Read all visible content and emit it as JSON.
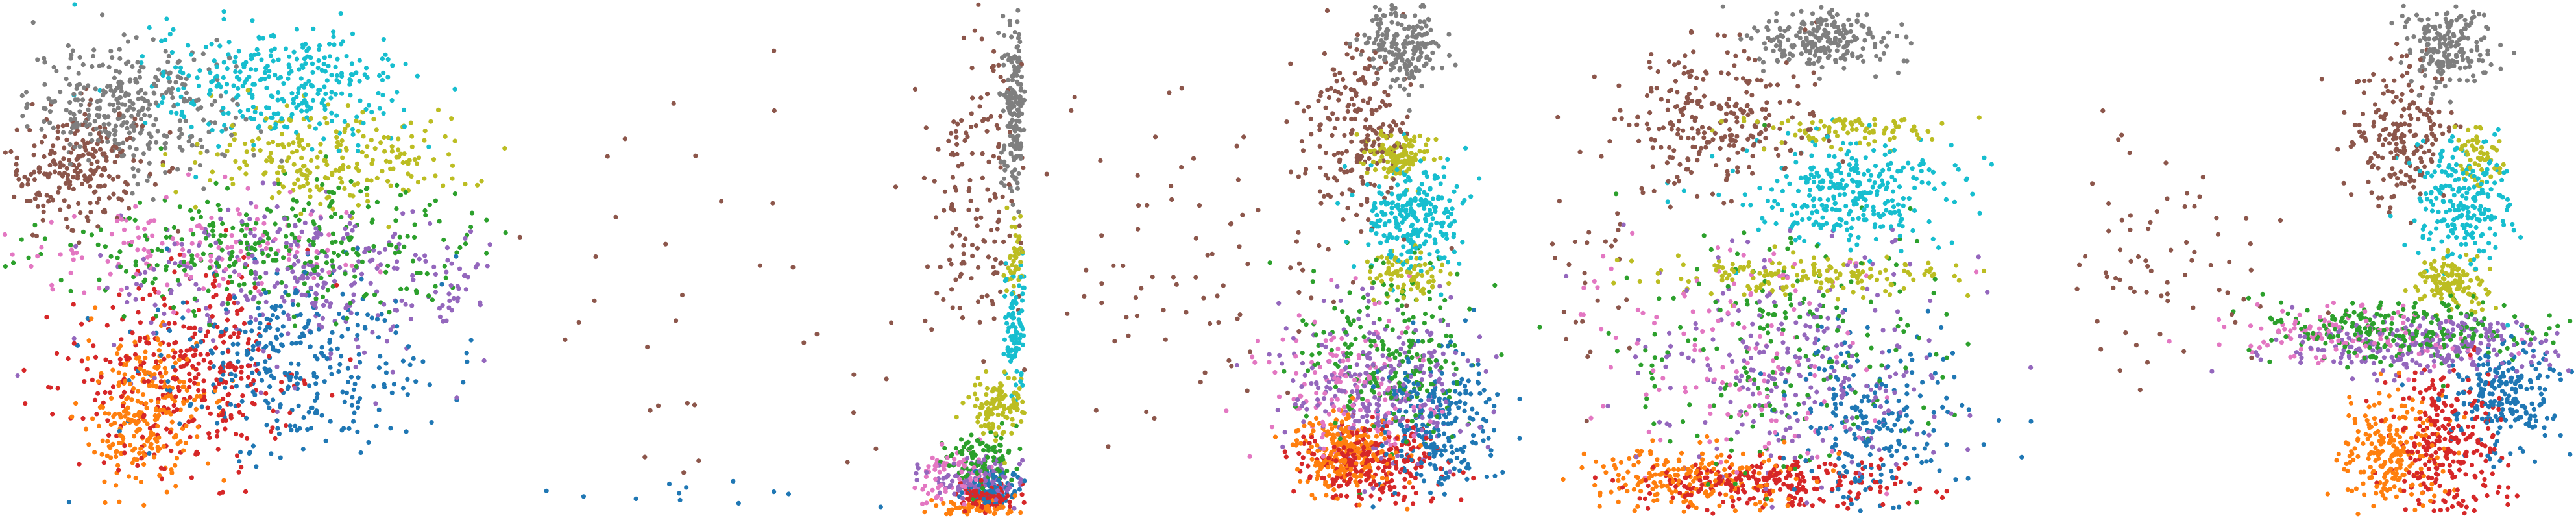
{
  "figure": {
    "title": "",
    "palette": {
      "blue": "#1f77b4",
      "orange": "#ff7f0e",
      "green": "#2ca02c",
      "red": "#d62728",
      "purple": "#9467bd",
      "brown": "#8c564b",
      "pink": "#e377c2",
      "gray": "#7f7f7f",
      "olive": "#bcbd22",
      "cyan": "#17becf"
    }
  },
  "chart_data": [
    {
      "type": "scatter",
      "title": "",
      "xlabel": "",
      "ylabel": "",
      "axes_visible": false,
      "grid": false,
      "legend": "none",
      "xlim": [
        0,
        100
      ],
      "ylim": [
        0,
        100
      ],
      "series": [
        {
          "color": "#7f7f7f",
          "clusters": [
            {
              "cx": 25,
              "cy": 80,
              "sx": 10,
              "sy": 6,
              "n": 340
            }
          ]
        },
        {
          "color": "#8c564b",
          "clusters": [
            {
              "cx": 14,
              "cy": 68,
              "sx": 7,
              "sy": 6,
              "n": 230
            }
          ]
        },
        {
          "color": "#17becf",
          "clusters": [
            {
              "cx": 55,
              "cy": 84,
              "sx": 13,
              "sy": 6,
              "n": 330
            }
          ]
        },
        {
          "color": "#bcbd22",
          "clusters": [
            {
              "cx": 65,
              "cy": 70,
              "sx": 14,
              "sy": 5,
              "n": 230
            }
          ]
        },
        {
          "color": "#2ca02c",
          "clusters": [
            {
              "cx": 55,
              "cy": 52,
              "sx": 22,
              "sy": 6,
              "n": 320
            }
          ]
        },
        {
          "color": "#9467bd",
          "clusters": [
            {
              "cx": 62,
              "cy": 46,
              "sx": 20,
              "sy": 8,
              "n": 320
            }
          ]
        },
        {
          "color": "#e377c2",
          "clusters": [
            {
              "cx": 38,
              "cy": 52,
              "sx": 18,
              "sy": 5,
              "n": 140
            }
          ]
        },
        {
          "color": "#1f77b4",
          "clusters": [
            {
              "cx": 57,
              "cy": 30,
              "sx": 14,
              "sy": 9,
              "n": 330
            }
          ]
        },
        {
          "color": "#d62728",
          "clusters": [
            {
              "cx": 36,
              "cy": 27,
              "sx": 12,
              "sy": 10,
              "n": 340
            }
          ]
        },
        {
          "color": "#ff7f0e",
          "clusters": [
            {
              "cx": 28,
              "cy": 20,
              "sx": 6,
              "sy": 7,
              "n": 270
            }
          ]
        }
      ]
    },
    {
      "type": "scatter",
      "title": "",
      "xlabel": "",
      "ylabel": "",
      "axes_visible": false,
      "grid": false,
      "legend": "none",
      "xlim": [
        0,
        100
      ],
      "ylim": [
        0,
        100
      ],
      "series": [
        {
          "color": "#7f7f7f",
          "clusters": [
            {
              "cx": 98,
              "cy": 80,
              "sx": 1.2,
              "sy": 8,
              "n": 180
            }
          ]
        },
        {
          "color": "#8c564b",
          "clusters": [
            {
              "cx": 90,
              "cy": 62,
              "sx": 5,
              "sy": 16,
              "n": 160
            },
            {
              "cx": 45,
              "cy": 40,
              "sx": 30,
              "sy": 25,
              "n": 45
            }
          ]
        },
        {
          "color": "#17becf",
          "clusters": [
            {
              "cx": 98,
              "cy": 36,
              "sx": 1.2,
              "sy": 6,
              "n": 90
            }
          ]
        },
        {
          "color": "#bcbd22",
          "clusters": [
            {
              "cx": 95,
              "cy": 21,
              "sx": 3,
              "sy": 3,
              "n": 120
            },
            {
              "cx": 98,
              "cy": 50,
              "sx": 1,
              "sy": 4,
              "n": 40
            }
          ]
        },
        {
          "color": "#2ca02c",
          "clusters": [
            {
              "cx": 92,
              "cy": 11,
              "sx": 4,
              "sy": 2.5,
              "n": 100
            }
          ]
        },
        {
          "color": "#9467bd",
          "clusters": [
            {
              "cx": 91,
              "cy": 7,
              "sx": 5,
              "sy": 2,
              "n": 120
            }
          ]
        },
        {
          "color": "#e377c2",
          "clusters": [
            {
              "cx": 86,
              "cy": 8,
              "sx": 4,
              "sy": 2.5,
              "n": 70
            }
          ]
        },
        {
          "color": "#1f77b4",
          "clusters": [
            {
              "cx": 94,
              "cy": 5,
              "sx": 3,
              "sy": 2,
              "n": 90
            },
            {
              "cx": 30,
              "cy": 4,
              "sx": 20,
              "sy": 1.5,
              "n": 12
            }
          ]
        },
        {
          "color": "#d62728",
          "clusters": [
            {
              "cx": 93,
              "cy": 3,
              "sx": 3,
              "sy": 1.5,
              "n": 90
            }
          ]
        },
        {
          "color": "#ff7f0e",
          "clusters": [
            {
              "cx": 90,
              "cy": 1,
              "sx": 4,
              "sy": 1,
              "n": 70
            }
          ]
        }
      ]
    },
    {
      "type": "scatter",
      "title": "",
      "xlabel": "",
      "ylabel": "",
      "axes_visible": false,
      "grid": false,
      "legend": "none",
      "xlim": [
        0,
        100
      ],
      "ylim": [
        0,
        100
      ],
      "series": [
        {
          "color": "#7f7f7f",
          "clusters": [
            {
              "cx": 73,
              "cy": 92,
              "sx": 4,
              "sy": 4,
              "n": 200
            }
          ]
        },
        {
          "color": "#8c564b",
          "clusters": [
            {
              "cx": 64,
              "cy": 76,
              "sx": 5,
              "sy": 9,
              "n": 200
            },
            {
              "cx": 30,
              "cy": 50,
              "sx": 18,
              "sy": 15,
              "n": 90
            }
          ]
        },
        {
          "color": "#17becf",
          "clusters": [
            {
              "cx": 74,
              "cy": 58,
              "sx": 5,
              "sy": 5,
              "n": 250
            }
          ]
        },
        {
          "color": "#bcbd22",
          "clusters": [
            {
              "cx": 72,
              "cy": 70,
              "sx": 3,
              "sy": 2.5,
              "n": 120
            },
            {
              "cx": 73,
              "cy": 47,
              "sx": 4,
              "sy": 2,
              "n": 80
            }
          ]
        },
        {
          "color": "#2ca02c",
          "clusters": [
            {
              "cx": 70,
              "cy": 30,
              "sx": 9,
              "sy": 9,
              "n": 220
            }
          ]
        },
        {
          "color": "#9467bd",
          "clusters": [
            {
              "cx": 68,
              "cy": 25,
              "sx": 9,
              "sy": 8,
              "n": 260
            }
          ]
        },
        {
          "color": "#e377c2",
          "clusters": [
            {
              "cx": 63,
              "cy": 24,
              "sx": 9,
              "sy": 8,
              "n": 150
            }
          ]
        },
        {
          "color": "#1f77b4",
          "clusters": [
            {
              "cx": 79,
              "cy": 18,
              "sx": 6,
              "sy": 7,
              "n": 250
            }
          ]
        },
        {
          "color": "#d62728",
          "clusters": [
            {
              "cx": 66,
              "cy": 10,
              "sx": 7,
              "sy": 4,
              "n": 260
            }
          ]
        },
        {
          "color": "#ff7f0e",
          "clusters": [
            {
              "cx": 61,
              "cy": 12,
              "sx": 5,
              "sy": 3.5,
              "n": 240
            }
          ]
        }
      ]
    },
    {
      "type": "scatter",
      "title": "",
      "xlabel": "",
      "ylabel": "",
      "axes_visible": false,
      "grid": false,
      "legend": "none",
      "xlim": [
        0,
        100
      ],
      "ylim": [
        0,
        100
      ],
      "series": [
        {
          "color": "#7f7f7f",
          "clusters": [
            {
              "cx": 54,
              "cy": 93,
              "sx": 7,
              "sy": 3,
              "n": 220
            }
          ]
        },
        {
          "color": "#8c564b",
          "clusters": [
            {
              "cx": 32,
              "cy": 78,
              "sx": 10,
              "sy": 8,
              "n": 260
            },
            {
              "cx": 4,
              "cy": 45,
              "sx": 8,
              "sy": 14,
              "n": 40
            }
          ]
        },
        {
          "color": "#17becf",
          "clusters": [
            {
              "cx": 58,
              "cy": 63,
              "sx": 11,
              "sy": 5,
              "n": 300
            }
          ]
        },
        {
          "color": "#bcbd22",
          "clusters": [
            {
              "cx": 50,
              "cy": 47,
              "sx": 16,
              "sy": 2,
              "n": 160
            },
            {
              "cx": 60,
              "cy": 75,
              "sx": 10,
              "sy": 2,
              "n": 90
            }
          ]
        },
        {
          "color": "#2ca02c",
          "clusters": [
            {
              "cx": 46,
              "cy": 32,
              "sx": 16,
              "sy": 12,
              "n": 200
            }
          ]
        },
        {
          "color": "#9467bd",
          "clusters": [
            {
              "cx": 48,
              "cy": 28,
              "sx": 16,
              "sy": 13,
              "n": 250
            }
          ]
        },
        {
          "color": "#e377c2",
          "clusters": [
            {
              "cx": 38,
              "cy": 30,
              "sx": 15,
              "sy": 12,
              "n": 140
            }
          ]
        },
        {
          "color": "#1f77b4",
          "clusters": [
            {
              "cx": 64,
              "cy": 18,
              "sx": 8,
              "sy": 9,
              "n": 220
            }
          ]
        },
        {
          "color": "#d62728",
          "clusters": [
            {
              "cx": 45,
              "cy": 6,
              "sx": 14,
              "sy": 2.5,
              "n": 260
            }
          ]
        },
        {
          "color": "#ff7f0e",
          "clusters": [
            {
              "cx": 28,
              "cy": 7,
              "sx": 10,
              "sy": 3,
              "n": 200
            }
          ]
        }
      ]
    },
    {
      "type": "scatter",
      "title": "",
      "xlabel": "",
      "ylabel": "",
      "axes_visible": false,
      "grid": false,
      "legend": "none",
      "xlim": [
        0,
        100
      ],
      "ylim": [
        0,
        100
      ],
      "series": [
        {
          "color": "#7f7f7f",
          "clusters": [
            {
              "cx": 75,
              "cy": 92,
              "sx": 4,
              "sy": 4,
              "n": 200
            }
          ]
        },
        {
          "color": "#8c564b",
          "clusters": [
            {
              "cx": 66,
              "cy": 75,
              "sx": 5,
              "sy": 7,
              "n": 200
            },
            {
              "cx": 15,
              "cy": 50,
              "sx": 12,
              "sy": 12,
              "n": 80
            }
          ]
        },
        {
          "color": "#17becf",
          "clusters": [
            {
              "cx": 78,
              "cy": 62,
              "sx": 5,
              "sy": 6,
              "n": 220
            }
          ]
        },
        {
          "color": "#bcbd22",
          "clusters": [
            {
              "cx": 76,
              "cy": 45,
              "sx": 4,
              "sy": 2.5,
              "n": 130
            },
            {
              "cx": 81,
              "cy": 70,
              "sx": 2,
              "sy": 3,
              "n": 60
            }
          ]
        },
        {
          "color": "#2ca02c",
          "clusters": [
            {
              "cx": 66,
              "cy": 36,
              "sx": 14,
              "sy": 3,
              "n": 250
            }
          ]
        },
        {
          "color": "#9467bd",
          "clusters": [
            {
              "cx": 72,
              "cy": 33,
              "sx": 13,
              "sy": 3,
              "n": 250
            }
          ]
        },
        {
          "color": "#e377c2",
          "clusters": [
            {
              "cx": 56,
              "cy": 35,
              "sx": 12,
              "sy": 3,
              "n": 120
            }
          ]
        },
        {
          "color": "#1f77b4",
          "clusters": [
            {
              "cx": 86,
              "cy": 23,
              "sx": 6,
              "sy": 5,
              "n": 220
            }
          ]
        },
        {
          "color": "#d62728",
          "clusters": [
            {
              "cx": 75,
              "cy": 14,
              "sx": 6,
              "sy": 7,
              "n": 260
            }
          ]
        },
        {
          "color": "#ff7f0e",
          "clusters": [
            {
              "cx": 64,
              "cy": 12,
              "sx": 5,
              "sy": 6,
              "n": 220
            }
          ]
        }
      ]
    }
  ]
}
